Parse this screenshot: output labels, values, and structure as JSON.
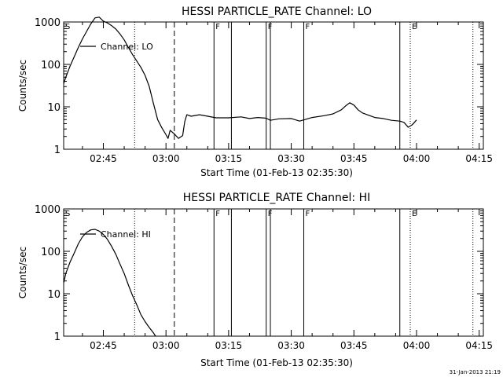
{
  "figure": {
    "stamp": "31-Jan-2013 21:19"
  },
  "chart_data": [
    {
      "type": "line",
      "title": "HESSI PARTICLE_RATE Channel: LO",
      "xlabel": "Start Time (01-Feb-13 02:35:30)",
      "ylabel": "Counts/sec",
      "y_scale": "log",
      "xlim": [
        "02:35:30",
        "04:16:00"
      ],
      "ylim": [
        1,
        1000
      ],
      "x_ticks": [
        "02:45",
        "03:00",
        "03:15",
        "03:30",
        "03:45",
        "04:00",
        "04:15"
      ],
      "y_ticks": [
        "1",
        "10",
        "100",
        "1000"
      ],
      "legend": "Channel: LO",
      "legend_position": "top-left",
      "flags": [
        {
          "label": "S",
          "time": "02:35:30"
        },
        {
          "label": "F",
          "time": "03:11:30"
        },
        {
          "label": "F",
          "time": "03:24:00"
        },
        {
          "label": "F",
          "time": "03:33:00"
        },
        {
          "label": "E",
          "time": "03:58:30"
        }
      ],
      "dotted_lines": [
        "02:52:30",
        "03:58:30",
        "04:13:30"
      ],
      "dashed_lines": [
        "03:02:00"
      ],
      "solid_lines": [
        "03:11:30",
        "03:15:40",
        "03:24:00",
        "03:25:00",
        "03:33:00",
        "03:56:00"
      ],
      "series": [
        {
          "x": [
            "02:35:30",
            "02:36:00",
            "02:37:00",
            "02:38:00",
            "02:39:00",
            "02:40:00",
            "02:41:00",
            "02:42:00",
            "02:43:00",
            "02:44:00",
            "02:45:00",
            "02:46:00",
            "02:47:00",
            "02:48:00",
            "02:49:00",
            "02:50:00",
            "02:51:00",
            "02:52:00",
            "02:53:00",
            "02:54:00",
            "02:55:00",
            "02:56:00",
            "02:57:00",
            "02:58:00",
            "02:59:00",
            "03:00:00",
            "03:00:30",
            "03:01:00",
            "03:02:00",
            "03:03:00",
            "03:04:00",
            "03:04:30",
            "03:05:00",
            "03:06:00",
            "03:08:00",
            "03:10:00",
            "03:12:00",
            "03:15:00",
            "03:18:00",
            "03:20:00",
            "03:22:00",
            "03:24:00",
            "03:25:00",
            "03:27:00",
            "03:30:00",
            "03:32:00",
            "03:35:00",
            "03:38:00",
            "03:40:00",
            "03:42:00",
            "03:43:00",
            "03:44:00",
            "03:45:00",
            "03:46:00",
            "03:47:00",
            "03:48:00",
            "03:50:00",
            "03:52:00",
            "03:54:00",
            "03:56:00",
            "03:57:00",
            "03:58:00",
            "03:59:00",
            "04:00:00"
          ],
          "y": [
            35,
            50,
            90,
            150,
            250,
            400,
            600,
            900,
            1250,
            1300,
            1050,
            950,
            820,
            680,
            520,
            380,
            250,
            170,
            120,
            85,
            55,
            30,
            12,
            5,
            3.2,
            2.2,
            1.8,
            2.8,
            2.3,
            1.8,
            2.1,
            4.5,
            6.5,
            6,
            6.5,
            6,
            5.5,
            5.5,
            5.8,
            5.3,
            5.6,
            5.4,
            4.8,
            5.2,
            5.3,
            4.6,
            5.6,
            6.2,
            6.8,
            8.5,
            10.5,
            12.5,
            11,
            8.5,
            7.2,
            6.6,
            5.6,
            5.3,
            4.8,
            4.6,
            4.3,
            3.3,
            3.8,
            4.9
          ]
        }
      ]
    },
    {
      "type": "line",
      "title": "HESSI PARTICLE_RATE Channel: HI",
      "xlabel": "Start Time (01-Feb-13 02:35:30)",
      "ylabel": "Counts/sec",
      "y_scale": "log",
      "xlim": [
        "02:35:30",
        "04:16:00"
      ],
      "ylim": [
        1,
        1000
      ],
      "x_ticks": [
        "02:45",
        "03:00",
        "03:15",
        "03:30",
        "03:45",
        "04:00",
        "04:15"
      ],
      "y_ticks": [
        "1",
        "10",
        "100",
        "1000"
      ],
      "legend": "Channel: HI",
      "legend_position": "top-left",
      "flags": [
        {
          "label": "S",
          "time": "02:35:30"
        },
        {
          "label": "F",
          "time": "03:11:30"
        },
        {
          "label": "F",
          "time": "03:24:00"
        },
        {
          "label": "F",
          "time": "03:33:00"
        },
        {
          "label": "E",
          "time": "03:58:30"
        }
      ],
      "dotted_lines": [
        "02:52:30",
        "03:58:30",
        "04:13:30"
      ],
      "dashed_lines": [
        "03:02:00"
      ],
      "solid_lines": [
        "03:11:30",
        "03:15:40",
        "03:24:00",
        "03:25:00",
        "03:33:00",
        "03:56:00"
      ],
      "series": [
        {
          "x": [
            "02:35:30",
            "02:36:00",
            "02:37:00",
            "02:38:00",
            "02:39:00",
            "02:40:00",
            "02:41:00",
            "02:42:00",
            "02:43:00",
            "02:44:00",
            "02:45:00",
            "02:46:00",
            "02:47:00",
            "02:48:00",
            "02:49:00",
            "02:50:00",
            "02:51:00",
            "02:52:00",
            "02:53:00",
            "02:54:00",
            "02:55:00",
            "02:56:00",
            "02:57:00",
            "02:57:30"
          ],
          "y": [
            18,
            30,
            55,
            90,
            150,
            220,
            280,
            320,
            330,
            300,
            250,
            190,
            130,
            85,
            50,
            30,
            16,
            9,
            5.5,
            3.2,
            2.2,
            1.6,
            1.2,
            1
          ]
        }
      ]
    }
  ]
}
